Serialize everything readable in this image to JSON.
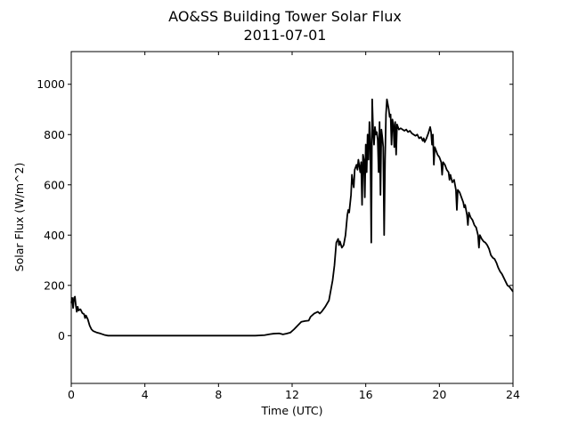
{
  "chart_data": {
    "type": "line",
    "title": "AO&SS Building Tower Solar Flux",
    "subtitle": "2011-07-01",
    "xlabel": "Time (UTC)",
    "ylabel": "Solar Flux (W/m^2)",
    "xlim": [
      0,
      24
    ],
    "ylim": [
      -190,
      1130
    ],
    "xticks": [
      0,
      4,
      8,
      12,
      16,
      20,
      24
    ],
    "yticks": [
      0,
      200,
      400,
      600,
      800,
      1000
    ],
    "grid": false,
    "series": [
      {
        "color": "#000000",
        "points": [
          [
            0.0,
            130
          ],
          [
            0.05,
            150
          ],
          [
            0.1,
            110
          ],
          [
            0.15,
            150
          ],
          [
            0.2,
            155
          ],
          [
            0.25,
            120
          ],
          [
            0.3,
            95
          ],
          [
            0.35,
            115
          ],
          [
            0.4,
            100
          ],
          [
            0.5,
            105
          ],
          [
            0.6,
            90
          ],
          [
            0.7,
            85
          ],
          [
            0.75,
            70
          ],
          [
            0.8,
            80
          ],
          [
            0.9,
            65
          ],
          [
            1.0,
            40
          ],
          [
            1.1,
            25
          ],
          [
            1.2,
            18
          ],
          [
            1.4,
            12
          ],
          [
            1.6,
            8
          ],
          [
            1.8,
            3
          ],
          [
            2.0,
            0
          ],
          [
            3.0,
            0
          ],
          [
            5.0,
            0
          ],
          [
            7.0,
            0
          ],
          [
            9.0,
            0
          ],
          [
            10.0,
            0
          ],
          [
            10.5,
            2
          ],
          [
            10.8,
            6
          ],
          [
            11.0,
            8
          ],
          [
            11.3,
            9
          ],
          [
            11.5,
            5
          ],
          [
            11.7,
            8
          ],
          [
            11.9,
            12
          ],
          [
            12.1,
            25
          ],
          [
            12.3,
            40
          ],
          [
            12.5,
            55
          ],
          [
            12.7,
            58
          ],
          [
            12.9,
            60
          ],
          [
            13.0,
            75
          ],
          [
            13.2,
            88
          ],
          [
            13.4,
            95
          ],
          [
            13.5,
            88
          ],
          [
            13.6,
            95
          ],
          [
            13.8,
            115
          ],
          [
            14.0,
            140
          ],
          [
            14.2,
            220
          ],
          [
            14.3,
            280
          ],
          [
            14.4,
            370
          ],
          [
            14.5,
            385
          ],
          [
            14.55,
            360
          ],
          [
            14.6,
            375
          ],
          [
            14.7,
            350
          ],
          [
            14.8,
            360
          ],
          [
            14.9,
            400
          ],
          [
            15.0,
            480
          ],
          [
            15.05,
            500
          ],
          [
            15.1,
            490
          ],
          [
            15.2,
            560
          ],
          [
            15.25,
            640
          ],
          [
            15.3,
            610
          ],
          [
            15.35,
            590
          ],
          [
            15.4,
            660
          ],
          [
            15.5,
            680
          ],
          [
            15.55,
            660
          ],
          [
            15.6,
            700
          ],
          [
            15.7,
            650
          ],
          [
            15.75,
            690
          ],
          [
            15.8,
            520
          ],
          [
            15.85,
            720
          ],
          [
            15.9,
            700
          ],
          [
            15.95,
            550
          ],
          [
            16.0,
            760
          ],
          [
            16.05,
            650
          ],
          [
            16.1,
            800
          ],
          [
            16.15,
            700
          ],
          [
            16.2,
            850
          ],
          [
            16.25,
            760
          ],
          [
            16.3,
            370
          ],
          [
            16.35,
            940
          ],
          [
            16.4,
            820
          ],
          [
            16.45,
            760
          ],
          [
            16.5,
            830
          ],
          [
            16.55,
            800
          ],
          [
            16.6,
            810
          ],
          [
            16.65,
            780
          ],
          [
            16.7,
            650
          ],
          [
            16.75,
            850
          ],
          [
            16.8,
            560
          ],
          [
            16.85,
            820
          ],
          [
            16.9,
            790
          ],
          [
            16.95,
            750
          ],
          [
            17.0,
            400
          ],
          [
            17.05,
            700
          ],
          [
            17.1,
            880
          ],
          [
            17.15,
            940
          ],
          [
            17.2,
            920
          ],
          [
            17.25,
            900
          ],
          [
            17.3,
            870
          ],
          [
            17.35,
            880
          ],
          [
            17.4,
            760
          ],
          [
            17.45,
            860
          ],
          [
            17.5,
            840
          ],
          [
            17.55,
            750
          ],
          [
            17.6,
            850
          ],
          [
            17.65,
            720
          ],
          [
            17.7,
            840
          ],
          [
            17.8,
            820
          ],
          [
            17.9,
            825
          ],
          [
            18.0,
            820
          ],
          [
            18.1,
            815
          ],
          [
            18.2,
            820
          ],
          [
            18.3,
            810
          ],
          [
            18.4,
            815
          ],
          [
            18.5,
            805
          ],
          [
            18.6,
            800
          ],
          [
            18.7,
            795
          ],
          [
            18.8,
            800
          ],
          [
            18.9,
            785
          ],
          [
            19.0,
            790
          ],
          [
            19.1,
            775
          ],
          [
            19.15,
            785
          ],
          [
            19.2,
            770
          ],
          [
            19.3,
            785
          ],
          [
            19.4,
            805
          ],
          [
            19.5,
            830
          ],
          [
            19.55,
            810
          ],
          [
            19.6,
            760
          ],
          [
            19.65,
            800
          ],
          [
            19.7,
            680
          ],
          [
            19.75,
            750
          ],
          [
            19.8,
            740
          ],
          [
            19.9,
            720
          ],
          [
            20.0,
            710
          ],
          [
            20.1,
            690
          ],
          [
            20.15,
            640
          ],
          [
            20.2,
            690
          ],
          [
            20.3,
            680
          ],
          [
            20.4,
            660
          ],
          [
            20.5,
            650
          ],
          [
            20.55,
            620
          ],
          [
            20.6,
            640
          ],
          [
            20.7,
            610
          ],
          [
            20.8,
            620
          ],
          [
            20.85,
            600
          ],
          [
            20.9,
            580
          ],
          [
            20.95,
            500
          ],
          [
            21.0,
            580
          ],
          [
            21.1,
            570
          ],
          [
            21.2,
            550
          ],
          [
            21.3,
            530
          ],
          [
            21.35,
            510
          ],
          [
            21.4,
            520
          ],
          [
            21.5,
            480
          ],
          [
            21.55,
            440
          ],
          [
            21.6,
            490
          ],
          [
            21.7,
            470
          ],
          [
            21.8,
            460
          ],
          [
            21.9,
            440
          ],
          [
            22.0,
            430
          ],
          [
            22.1,
            400
          ],
          [
            22.15,
            350
          ],
          [
            22.2,
            400
          ],
          [
            22.3,
            385
          ],
          [
            22.4,
            375
          ],
          [
            22.5,
            370
          ],
          [
            22.6,
            360
          ],
          [
            22.7,
            345
          ],
          [
            22.8,
            320
          ],
          [
            22.9,
            310
          ],
          [
            23.0,
            305
          ],
          [
            23.1,
            290
          ],
          [
            23.2,
            270
          ],
          [
            23.3,
            255
          ],
          [
            23.4,
            245
          ],
          [
            23.5,
            230
          ],
          [
            23.6,
            215
          ],
          [
            23.7,
            200
          ],
          [
            23.8,
            195
          ],
          [
            23.9,
            185
          ],
          [
            24.0,
            175
          ]
        ]
      }
    ]
  }
}
